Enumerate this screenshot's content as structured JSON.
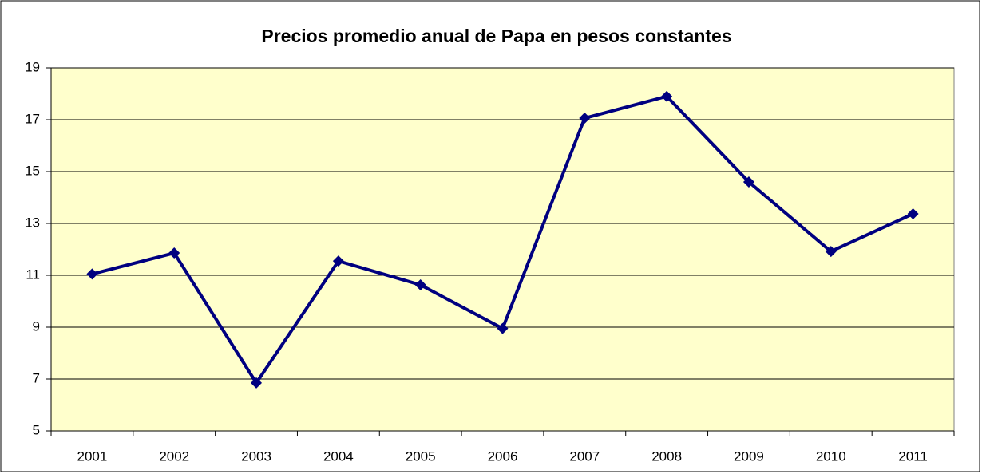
{
  "chart_data": {
    "type": "line",
    "title": "Precios promedio anual de Papa en pesos constantes",
    "categories": [
      "2001",
      "2002",
      "2003",
      "2004",
      "2005",
      "2006",
      "2007",
      "2008",
      "2009",
      "2010",
      "2011"
    ],
    "series": [
      {
        "name": "Papa",
        "color": "#000080",
        "values": [
          11.05,
          11.86,
          6.85,
          11.55,
          10.63,
          8.95,
          17.06,
          17.9,
          14.6,
          11.92,
          13.37
        ]
      }
    ],
    "ylim": [
      5,
      19
    ],
    "yticks": [
      5,
      7,
      9,
      11,
      13,
      15,
      17,
      19
    ],
    "grid": true,
    "plot_background": "#ffffcc"
  }
}
